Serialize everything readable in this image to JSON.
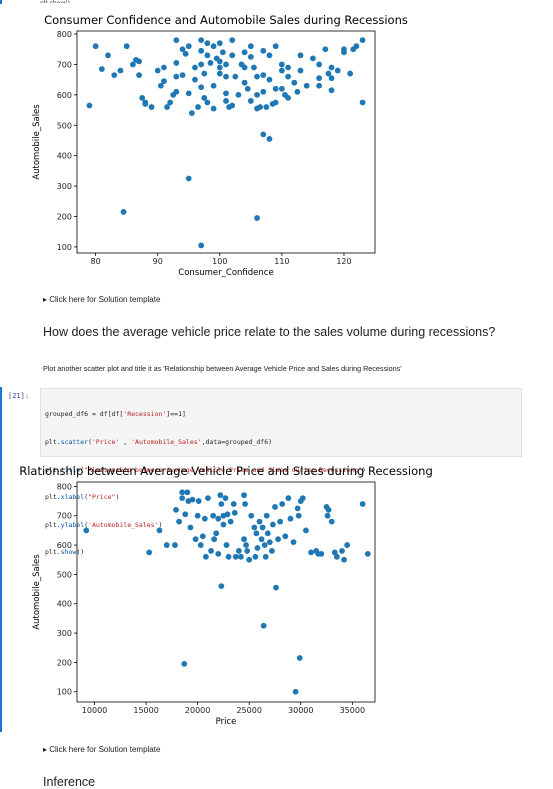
{
  "top_code_fragment": "plt.show()",
  "chart_data": [
    {
      "type": "scatter",
      "title": "Consumer Confidence and Automobile Sales during Recessions",
      "xlabel": "Consumer_Confidence",
      "ylabel": "Automobile_Sales",
      "xlim": [
        77,
        125
      ],
      "ylim": [
        80,
        810
      ],
      "xticks": [
        "80",
        "90",
        "100",
        "110",
        "120"
      ],
      "yticks": [
        "100",
        "200",
        "300",
        "400",
        "500",
        "600",
        "700",
        "800"
      ],
      "xtick_values": [
        80,
        90,
        100,
        110,
        120
      ],
      "ytick_values": [
        100,
        200,
        300,
        400,
        500,
        600,
        700,
        800
      ],
      "color": "#1f77b4",
      "points": [
        [
          79,
          565
        ],
        [
          80,
          760
        ],
        [
          81,
          685
        ],
        [
          82,
          730
        ],
        [
          83,
          665
        ],
        [
          84,
          680
        ],
        [
          84.5,
          215
        ],
        [
          85,
          760
        ],
        [
          86,
          700
        ],
        [
          86.5,
          715
        ],
        [
          87,
          710
        ],
        [
          87,
          665
        ],
        [
          87.5,
          590
        ],
        [
          88,
          570
        ],
        [
          88,
          575
        ],
        [
          89,
          560
        ],
        [
          90,
          680
        ],
        [
          90.5,
          630
        ],
        [
          91,
          690
        ],
        [
          91,
          645
        ],
        [
          91.5,
          560
        ],
        [
          92,
          575
        ],
        [
          92.5,
          600
        ],
        [
          93,
          660
        ],
        [
          93,
          705
        ],
        [
          93,
          610
        ],
        [
          93,
          780
        ],
        [
          94,
          665
        ],
        [
          94,
          750
        ],
        [
          94.5,
          735
        ],
        [
          95,
          605
        ],
        [
          95,
          325
        ],
        [
          95,
          760
        ],
        [
          95.5,
          540
        ],
        [
          96,
          690
        ],
        [
          96,
          650
        ],
        [
          96.5,
          560
        ],
        [
          97,
          700
        ],
        [
          97,
          780
        ],
        [
          97,
          745
        ],
        [
          97,
          105
        ],
        [
          97,
          625
        ],
        [
          97.5,
          670
        ],
        [
          97.5,
          590
        ],
        [
          98,
          770
        ],
        [
          98,
          730
        ],
        [
          98,
          575
        ],
        [
          98.5,
          705
        ],
        [
          99,
          760
        ],
        [
          99,
          630
        ],
        [
          99,
          555
        ],
        [
          99.5,
          720
        ],
        [
          100,
          710
        ],
        [
          100,
          670
        ],
        [
          100,
          770
        ],
        [
          100,
          690
        ],
        [
          100.5,
          740
        ],
        [
          101,
          700
        ],
        [
          101,
          660
        ],
        [
          101,
          605
        ],
        [
          101,
          580
        ],
        [
          101.5,
          560
        ],
        [
          102,
          780
        ],
        [
          102,
          730
        ],
        [
          102,
          565
        ],
        [
          102.5,
          660
        ],
        [
          103,
          600
        ],
        [
          103.5,
          700
        ],
        [
          104,
          740
        ],
        [
          104,
          690
        ],
        [
          104,
          640
        ],
        [
          104.5,
          620
        ],
        [
          105,
          760
        ],
        [
          105,
          725
        ],
        [
          105,
          580
        ],
        [
          105.5,
          690
        ],
        [
          106,
          660
        ],
        [
          106,
          600
        ],
        [
          106,
          555
        ],
        [
          106,
          195
        ],
        [
          106.5,
          560
        ],
        [
          107,
          745
        ],
        [
          107,
          665
        ],
        [
          107,
          610
        ],
        [
          107,
          470
        ],
        [
          107.5,
          560
        ],
        [
          108,
          730
        ],
        [
          108,
          650
        ],
        [
          108,
          455
        ],
        [
          108.5,
          570
        ],
        [
          109,
          760
        ],
        [
          109,
          620
        ],
        [
          109,
          575
        ],
        [
          110,
          700
        ],
        [
          110,
          680
        ],
        [
          110,
          620
        ],
        [
          110.5,
          600
        ],
        [
          111,
          690
        ],
        [
          111,
          660
        ],
        [
          111,
          590
        ],
        [
          112,
          640
        ],
        [
          112.5,
          610
        ],
        [
          113,
          730
        ],
        [
          113,
          680
        ],
        [
          114,
          630
        ],
        [
          115,
          720
        ],
        [
          116,
          700
        ],
        [
          116,
          655
        ],
        [
          116,
          630
        ],
        [
          117,
          750
        ],
        [
          117.5,
          670
        ],
        [
          118,
          690
        ],
        [
          118,
          655
        ],
        [
          118,
          615
        ],
        [
          119,
          680
        ],
        [
          120,
          750
        ],
        [
          120,
          740
        ],
        [
          121,
          670
        ],
        [
          121.5,
          750
        ],
        [
          122,
          760
        ],
        [
          123,
          780
        ],
        [
          123,
          575
        ]
      ]
    },
    {
      "type": "scatter",
      "title": "Rlationship between Average Vehicle Price and Slaes during Recessiong",
      "xlabel": "Price",
      "ylabel": "Automobile_Sales",
      "xlim": [
        8300,
        37200
      ],
      "ylim": [
        65,
        815
      ],
      "xticks": [
        "10000",
        "15000",
        "20000",
        "25000",
        "30000",
        "35000"
      ],
      "yticks": [
        "100",
        "200",
        "300",
        "400",
        "500",
        "600",
        "700",
        "800"
      ],
      "xtick_values": [
        10000,
        15000,
        20000,
        25000,
        30000,
        35000
      ],
      "ytick_values": [
        100,
        200,
        300,
        400,
        500,
        600,
        700,
        800
      ],
      "color": "#1f77b4",
      "points": [
        [
          9200,
          650
        ],
        [
          15300,
          575
        ],
        [
          16300,
          650
        ],
        [
          17000,
          600
        ],
        [
          17800,
          600
        ],
        [
          17900,
          720
        ],
        [
          18200,
          680
        ],
        [
          18500,
          780
        ],
        [
          18500,
          760
        ],
        [
          18700,
          195
        ],
        [
          18800,
          705
        ],
        [
          19000,
          780
        ],
        [
          19100,
          750
        ],
        [
          19300,
          660
        ],
        [
          19500,
          755
        ],
        [
          19800,
          620
        ],
        [
          20000,
          700
        ],
        [
          20100,
          750
        ],
        [
          20300,
          600
        ],
        [
          20500,
          630
        ],
        [
          20700,
          690
        ],
        [
          20800,
          560
        ],
        [
          21000,
          760
        ],
        [
          21300,
          580
        ],
        [
          21500,
          700
        ],
        [
          21600,
          620
        ],
        [
          21800,
          640
        ],
        [
          22000,
          690
        ],
        [
          22000,
          570
        ],
        [
          22200,
          770
        ],
        [
          22300,
          740
        ],
        [
          22300,
          460
        ],
        [
          22500,
          700
        ],
        [
          22500,
          670
        ],
        [
          22700,
          760
        ],
        [
          22800,
          600
        ],
        [
          22900,
          705
        ],
        [
          23000,
          560
        ],
        [
          23200,
          680
        ],
        [
          23500,
          740
        ],
        [
          23600,
          710
        ],
        [
          23700,
          560
        ],
        [
          24000,
          580
        ],
        [
          24200,
          560
        ],
        [
          24500,
          770
        ],
        [
          24500,
          620
        ],
        [
          24600,
          740
        ],
        [
          24700,
          600
        ],
        [
          24800,
          580
        ],
        [
          25000,
          550
        ],
        [
          25200,
          700
        ],
        [
          25500,
          660
        ],
        [
          25600,
          560
        ],
        [
          25700,
          640
        ],
        [
          25800,
          590
        ],
        [
          26000,
          680
        ],
        [
          26200,
          620
        ],
        [
          26300,
          660
        ],
        [
          26400,
          325
        ],
        [
          26500,
          600
        ],
        [
          26600,
          560
        ],
        [
          26700,
          700
        ],
        [
          26800,
          640
        ],
        [
          27000,
          610
        ],
        [
          27200,
          580
        ],
        [
          27300,
          670
        ],
        [
          27500,
          730
        ],
        [
          27600,
          455
        ],
        [
          27800,
          620
        ],
        [
          28000,
          680
        ],
        [
          28200,
          740
        ],
        [
          28500,
          630
        ],
        [
          28800,
          760
        ],
        [
          29000,
          690
        ],
        [
          29300,
          610
        ],
        [
          29500,
          100
        ],
        [
          29700,
          725
        ],
        [
          29800,
          700
        ],
        [
          29900,
          215
        ],
        [
          30000,
          750
        ],
        [
          30200,
          760
        ],
        [
          30500,
          650
        ],
        [
          31000,
          575
        ],
        [
          31500,
          580
        ],
        [
          31700,
          570
        ],
        [
          32000,
          570
        ],
        [
          32500,
          730
        ],
        [
          32600,
          700
        ],
        [
          32700,
          720
        ],
        [
          33000,
          680
        ],
        [
          33300,
          575
        ],
        [
          33500,
          560
        ],
        [
          34000,
          580
        ],
        [
          34200,
          550
        ],
        [
          34500,
          600
        ],
        [
          36000,
          740
        ],
        [
          36500,
          570
        ]
      ]
    }
  ],
  "markdown": {
    "details1": "Click here for Solution template",
    "question": "How does the average vehicle price relate to the sales volume during recessions?",
    "instruction": "Plot another scatter plot and title it as 'Relationship between Average Vehicle Price and Sales during Recessions'",
    "details2": "Click here for Solution template",
    "inference": "Inference"
  },
  "code_cell": {
    "prompt": "[21]:",
    "lines": [
      "grouped_df6 = df[df['Recession']==1]",
      "plt.scatter('Price' , 'Automobile_Sales',data=grouped_df6)",
      "plt.title(\"Rlationship between Average Vehicle Price and Slaes during Recessiong\")",
      "plt.xlabel(\"Price\")",
      "plt.ylabel('Automobile_Sales')",
      "plt.show()"
    ]
  }
}
